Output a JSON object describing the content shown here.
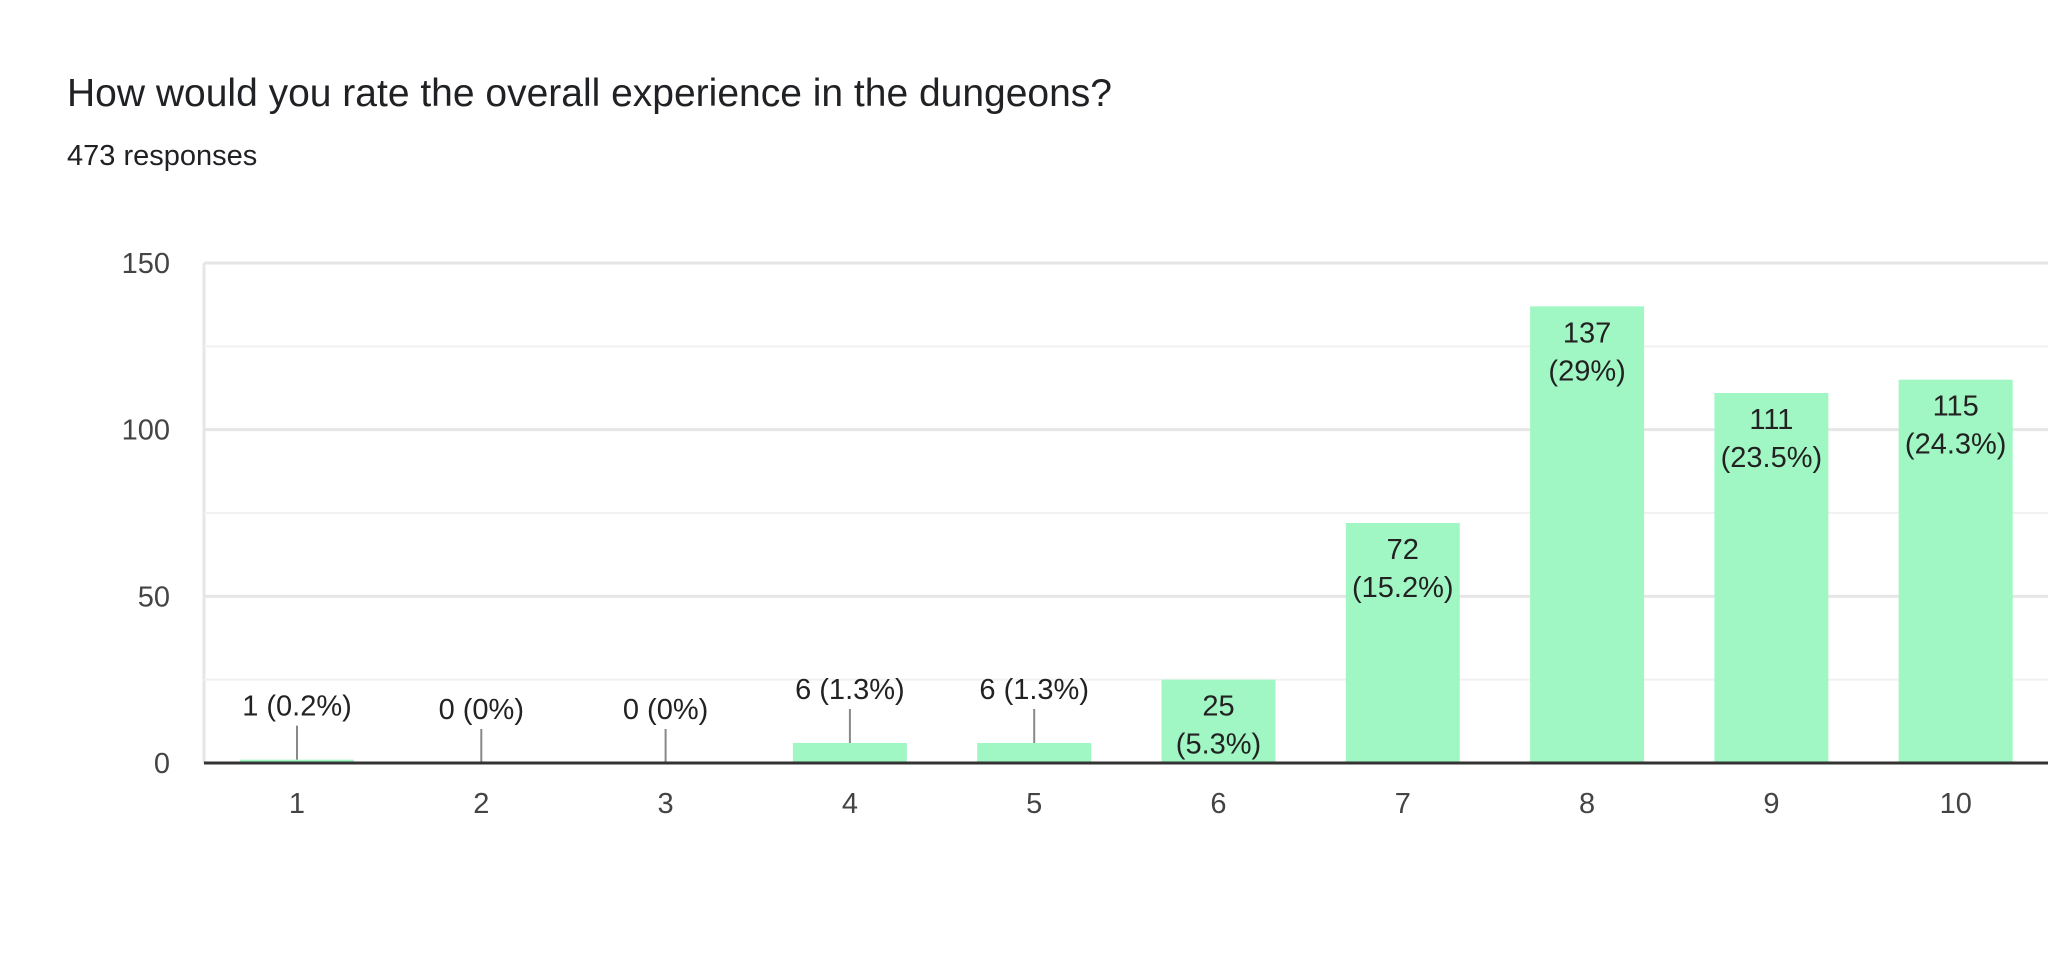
{
  "chart_data": {
    "type": "bar",
    "title": "How would you rate the overall experience in the dungeons?",
    "subtitle": "473 responses",
    "categories": [
      "1",
      "2",
      "3",
      "4",
      "5",
      "6",
      "7",
      "8",
      "9",
      "10"
    ],
    "values": [
      1,
      0,
      0,
      6,
      6,
      25,
      72,
      137,
      111,
      115
    ],
    "data_labels": [
      "1 (0.2%)",
      "0 (0%)",
      "0 (0%)",
      "6 (1.3%)",
      "6 (1.3%)",
      "25 (5.3%)",
      "72 (15.2%)",
      "137 (29%)",
      "111 (23.5%)",
      "115 (24.3%)"
    ],
    "y_ticks": [
      0,
      50,
      100,
      150
    ],
    "ylim": [
      0,
      150
    ],
    "xlabel": "",
    "ylabel": "",
    "grid": true,
    "bar_color": "#a1f7c4",
    "axis_color": "#333333",
    "grid_color": "#e6e6e6"
  }
}
